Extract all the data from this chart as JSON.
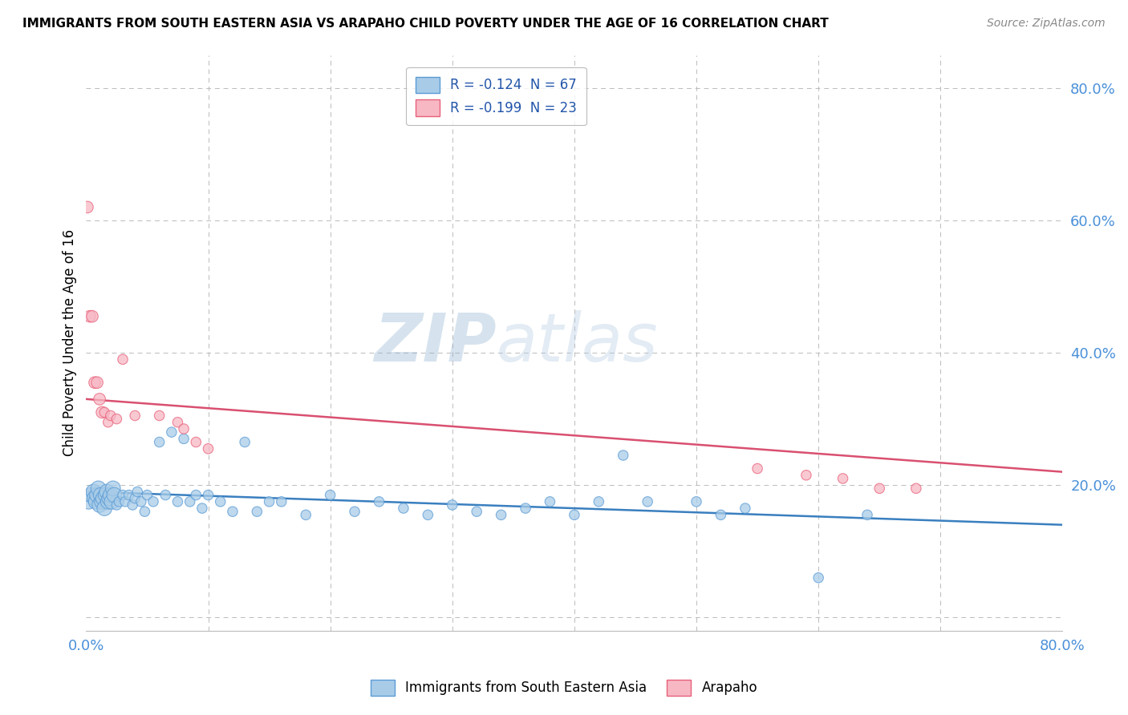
{
  "title": "IMMIGRANTS FROM SOUTH EASTERN ASIA VS ARAPAHO CHILD POVERTY UNDER THE AGE OF 16 CORRELATION CHART",
  "source": "Source: ZipAtlas.com",
  "ylabel": "Child Poverty Under the Age of 16",
  "xlim": [
    0.0,
    0.8
  ],
  "ylim": [
    -0.02,
    0.85
  ],
  "xticks": [
    0.0,
    0.1,
    0.2,
    0.3,
    0.4,
    0.5,
    0.6,
    0.7,
    0.8
  ],
  "ytick_positions": [
    0.0,
    0.2,
    0.4,
    0.6,
    0.8
  ],
  "ytick_labels": [
    "",
    "20.0%",
    "40.0%",
    "60.0%",
    "80.0%"
  ],
  "blue_color": "#A8CCE8",
  "pink_color": "#F7B8C4",
  "blue_edge_color": "#5B9BD5",
  "pink_edge_color": "#E8607A",
  "blue_line_color": "#3A7FBF",
  "pink_line_color": "#D95070",
  "blue_R": -0.124,
  "blue_N": 67,
  "pink_R": -0.199,
  "pink_N": 23,
  "watermark": "ZIPatlas",
  "watermark_color": "#C8D8E8",
  "legend_label_blue": "Immigrants from South Eastern Asia",
  "legend_label_pink": "Arapaho",
  "blue_scatter_x": [
    0.002,
    0.004,
    0.006,
    0.007,
    0.008,
    0.009,
    0.01,
    0.011,
    0.012,
    0.013,
    0.014,
    0.015,
    0.016,
    0.017,
    0.018,
    0.019,
    0.02,
    0.021,
    0.022,
    0.023,
    0.025,
    0.027,
    0.03,
    0.032,
    0.035,
    0.038,
    0.04,
    0.042,
    0.045,
    0.048,
    0.05,
    0.055,
    0.06,
    0.065,
    0.07,
    0.075,
    0.08,
    0.085,
    0.09,
    0.095,
    0.1,
    0.11,
    0.12,
    0.13,
    0.14,
    0.15,
    0.16,
    0.18,
    0.2,
    0.22,
    0.24,
    0.26,
    0.28,
    0.3,
    0.32,
    0.34,
    0.36,
    0.38,
    0.4,
    0.42,
    0.44,
    0.46,
    0.5,
    0.52,
    0.54,
    0.6,
    0.64
  ],
  "blue_scatter_y": [
    0.175,
    0.185,
    0.19,
    0.18,
    0.175,
    0.185,
    0.195,
    0.17,
    0.185,
    0.175,
    0.18,
    0.165,
    0.185,
    0.19,
    0.175,
    0.18,
    0.185,
    0.175,
    0.195,
    0.185,
    0.17,
    0.175,
    0.185,
    0.175,
    0.185,
    0.17,
    0.18,
    0.19,
    0.175,
    0.16,
    0.185,
    0.175,
    0.265,
    0.185,
    0.28,
    0.175,
    0.27,
    0.175,
    0.185,
    0.165,
    0.185,
    0.175,
    0.16,
    0.265,
    0.16,
    0.175,
    0.175,
    0.155,
    0.185,
    0.16,
    0.175,
    0.165,
    0.155,
    0.17,
    0.16,
    0.155,
    0.165,
    0.175,
    0.155,
    0.175,
    0.245,
    0.175,
    0.175,
    0.155,
    0.165,
    0.06,
    0.155
  ],
  "pink_scatter_x": [
    0.001,
    0.003,
    0.005,
    0.007,
    0.009,
    0.011,
    0.013,
    0.015,
    0.018,
    0.02,
    0.025,
    0.03,
    0.04,
    0.06,
    0.075,
    0.08,
    0.09,
    0.1,
    0.55,
    0.59,
    0.62,
    0.65,
    0.68
  ],
  "pink_scatter_y": [
    0.62,
    0.455,
    0.455,
    0.355,
    0.355,
    0.33,
    0.31,
    0.31,
    0.295,
    0.305,
    0.3,
    0.39,
    0.305,
    0.305,
    0.295,
    0.285,
    0.265,
    0.255,
    0.225,
    0.215,
    0.21,
    0.195,
    0.195
  ]
}
